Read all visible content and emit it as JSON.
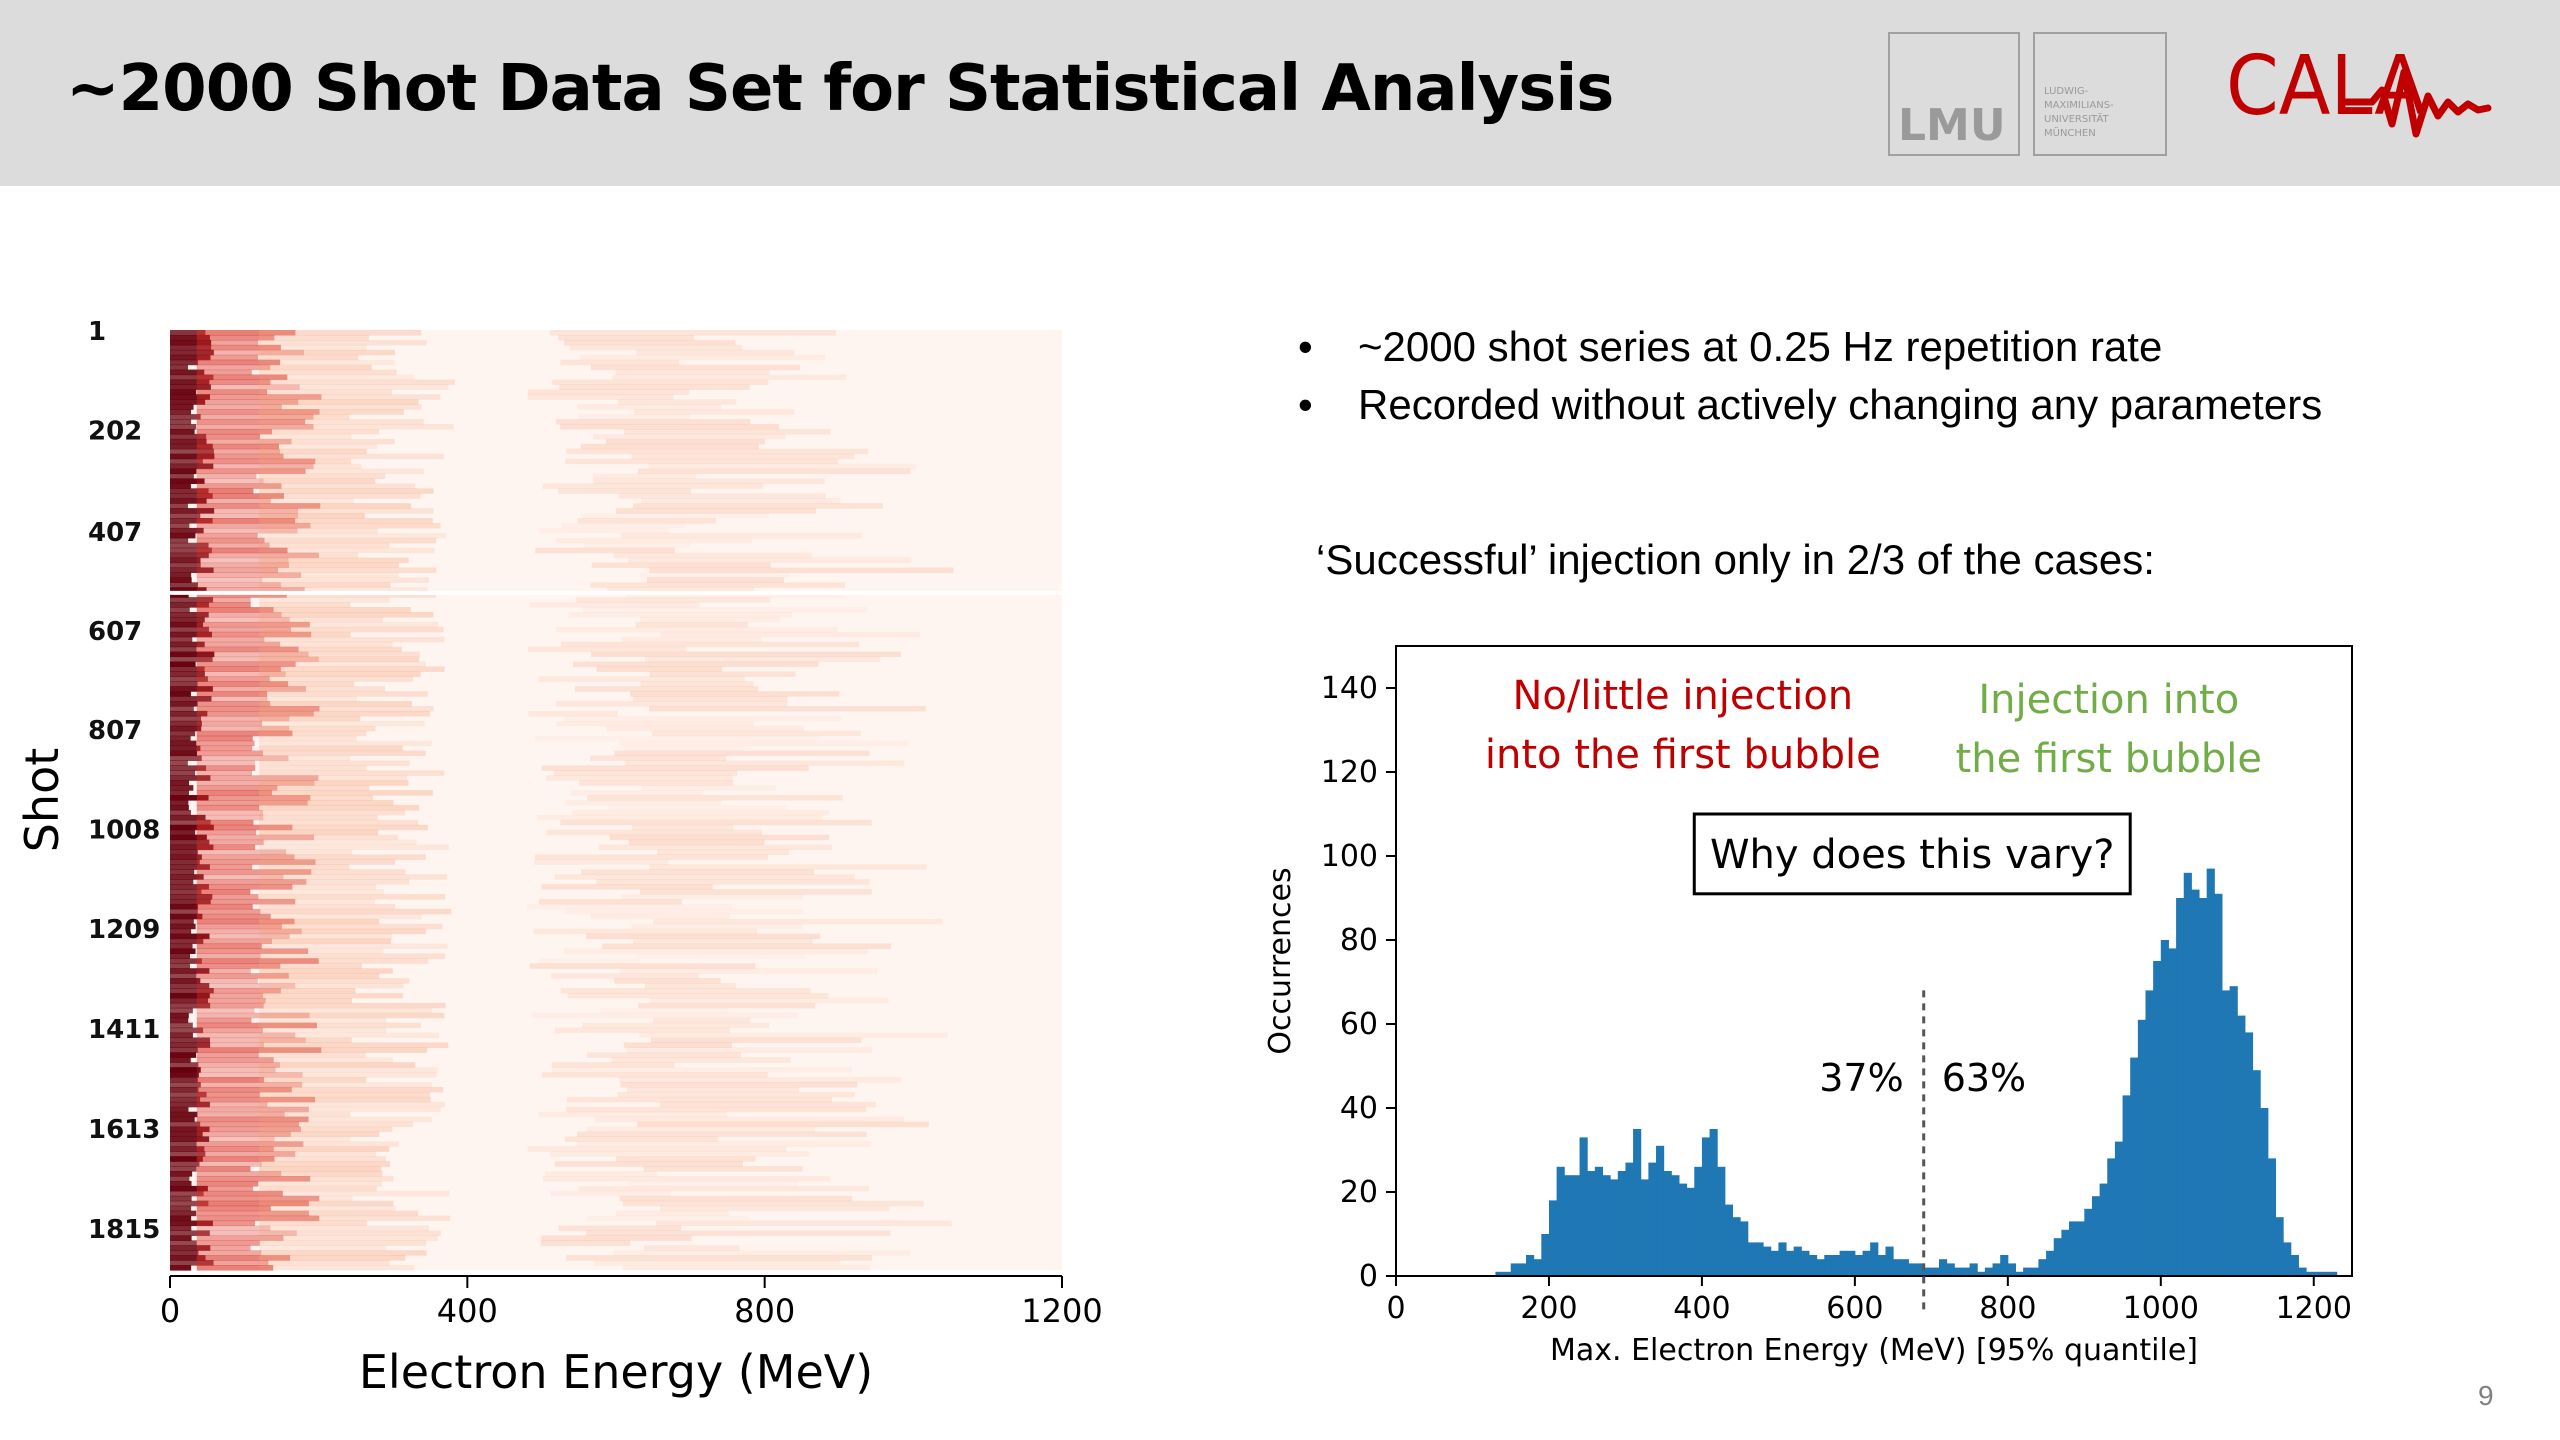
{
  "slide": {
    "title": "~2000 Shot Data Set for Statistical Analysis",
    "page_number": "9"
  },
  "logos": {
    "lmu_text": "LMU",
    "lmu_subtitle": [
      "LUDWIG-",
      "MAXIMILIANS-",
      "UNIVERSITÄT",
      "MÜNCHEN"
    ],
    "cala_text": "CALA"
  },
  "bullets": [
    "~2000 shot series at 0.25 Hz repetition rate",
    "Recorded without actively changing any parameters"
  ],
  "sub_heading": "‘Successful’ injection only in 2/3 of the cases:",
  "colors": {
    "header_bg": "#dcdcdc",
    "hist_bar": "#1f77b4",
    "annotation_red": "#c00000",
    "annotation_green": "#70ad47",
    "heatmap_dark": "#67000d",
    "heatmap_light": "#fff5f0"
  },
  "chart_data": [
    {
      "type": "heatmap",
      "xlabel": "Electron Energy (MeV)",
      "ylabel": "Shot",
      "xlim": [
        0,
        1200
      ],
      "x_ticks": [
        0,
        400,
        800,
        1200
      ],
      "y_ticks": [
        "1",
        "202",
        "407",
        "607",
        "807",
        "1008",
        "1209",
        "1411",
        "1613",
        "1815"
      ],
      "colormap": "Reds",
      "gap_after_shot": 528
    },
    {
      "type": "bar",
      "xlabel": "Max. Electron Energy (MeV) [95% quantile]",
      "ylabel": "Occurrences",
      "xlim": [
        0,
        1250
      ],
      "ylim": [
        0,
        150
      ],
      "x_ticks": [
        0,
        200,
        400,
        600,
        800,
        1000,
        1200
      ],
      "y_ticks": [
        0,
        20,
        40,
        60,
        80,
        100,
        120,
        140
      ],
      "bin_width": 10,
      "bin_start": 130,
      "values": [
        1,
        1,
        3,
        3,
        5,
        4,
        10,
        18,
        26,
        24,
        24,
        33,
        25,
        26,
        24,
        23,
        25,
        27,
        35,
        23,
        27,
        31,
        25,
        24,
        22,
        21,
        26,
        33,
        35,
        26,
        17,
        14,
        13,
        8,
        8,
        7,
        6,
        8,
        6,
        7,
        6,
        5,
        4,
        5,
        5,
        6,
        6,
        5,
        6,
        8,
        5,
        7,
        4,
        4,
        3,
        3,
        2,
        2,
        4,
        3,
        2,
        2,
        3,
        1,
        2,
        3,
        5,
        3,
        1,
        2,
        2,
        4,
        6,
        9,
        11,
        13,
        13,
        16,
        19,
        22,
        28,
        32,
        43,
        52,
        61,
        68,
        75,
        80,
        78,
        90,
        96,
        92,
        90,
        97,
        91,
        68,
        69,
        62,
        58,
        49,
        40,
        28,
        14,
        8,
        5,
        2,
        1,
        1,
        1,
        1,
        0,
        0,
        0,
        0,
        0,
        0,
        1
      ],
      "threshold_energy": 690,
      "annotations": {
        "left_label": [
          "No/little injection",
          "into the first bubble"
        ],
        "right_label": [
          "Injection into",
          "the first bubble"
        ],
        "left_pct": "37%",
        "right_pct": "63%",
        "question": "Why does this vary?"
      }
    }
  ]
}
